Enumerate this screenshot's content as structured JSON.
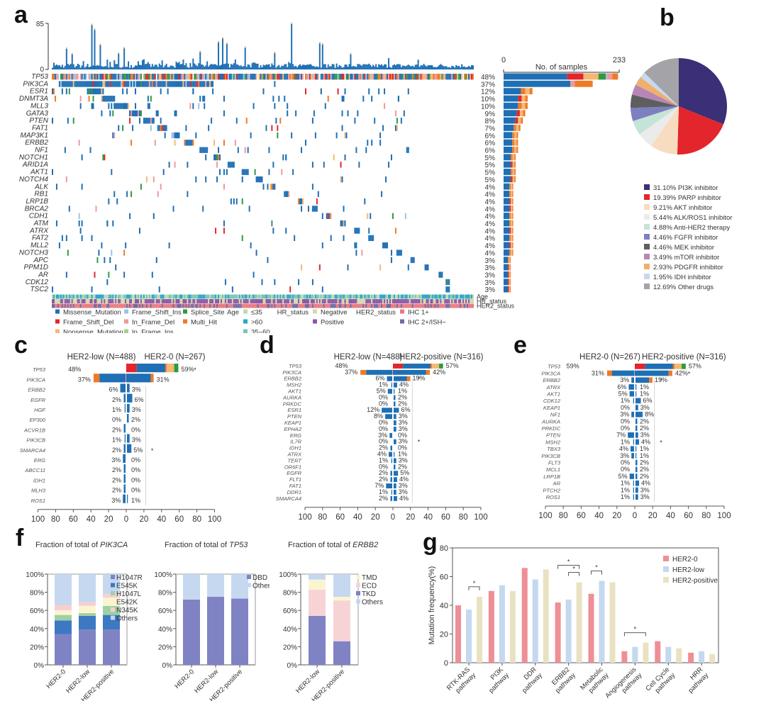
{
  "panel_letters": {
    "a": "a",
    "b": "b",
    "c": "c",
    "d": "d",
    "e": "e",
    "f": "f",
    "g": "g"
  },
  "colors": {
    "Missense_Mutation": "#1f6fb5",
    "Frame_Shift_Del": "#e2262b",
    "Nonsense_Mutation": "#f5b870",
    "Frame_Shift_Ins": "#9cc4e4",
    "In_Frame_Del": "#f0999a",
    "In_Frame_Ins": "#a6d08b",
    "Splice_Site": "#2e9a3f",
    "Multi_Hit": "#ef7a26",
    "age_le35": "#b9ddb4",
    "age_gt60": "#2aa6c9",
    "age_35_60": "#79c6b6",
    "hr_negative": "#d8d8a8",
    "hr_positive": "#8e56a4",
    "her2_ihc1": "#e87a80",
    "her2_ihc2": "#6d6aa8"
  },
  "chart_data": [
    {
      "id": "a",
      "type": "heatmap",
      "title": "Oncoprint",
      "tmb_axis": {
        "min": 0,
        "max": 85,
        "tick_labels": [
          "0",
          "85"
        ]
      },
      "sample_axis": {
        "label": "No. of samples",
        "min": 0,
        "max": 233,
        "tick_labels": [
          "0",
          "233"
        ]
      },
      "genes": [
        "TP53",
        "PIK3CA",
        "ESR1",
        "DNMT3A",
        "MLL3",
        "GATA3",
        "PTEN",
        "FAT1",
        "MAP3K1",
        "ERBB2",
        "NF1",
        "NOTCH1",
        "ARID1A",
        "AKT1",
        "NOTCH4",
        "ALK",
        "RB1",
        "LRP1B",
        "BRCA2",
        "CDH1",
        "ATM",
        "ATRX",
        "FAT2",
        "MLL2",
        "NOTCH3",
        "APC",
        "PPM1D",
        "AR",
        "CDK12",
        "TSC2"
      ],
      "frequencies": [
        "48%",
        "37%",
        "12%",
        "10%",
        "10%",
        "9%",
        "8%",
        "7%",
        "6%",
        "6%",
        "6%",
        "5%",
        "5%",
        "5%",
        "5%",
        "4%",
        "4%",
        "4%",
        "4%",
        "4%",
        "4%",
        "4%",
        "4%",
        "4%",
        "4%",
        "3%",
        "3%",
        "3%",
        "3%",
        "3%"
      ],
      "freq_values": [
        48,
        37,
        12,
        10,
        10,
        9,
        8,
        7,
        6,
        6,
        6,
        5,
        5,
        5,
        5,
        4,
        4,
        4,
        4,
        4,
        4,
        4,
        4,
        4,
        4,
        3,
        3,
        3,
        3,
        3
      ],
      "annotation_tracks": [
        "Age",
        "HR_status",
        "HER2_status"
      ],
      "legend_mutation": [
        "Missense_Mutation",
        "Frame_Shift_Ins",
        "Splice_Site",
        "Frame_Shift_Del",
        "In_Frame_Del",
        "Multi_Hit",
        "Nonsense_Mutation",
        "In_Frame_Ins"
      ],
      "legend_age": {
        "title": "Age",
        "items": [
          "≤35",
          ">60",
          "35~60"
        ]
      },
      "legend_hr": {
        "title": "HR_status",
        "items": [
          "Negative",
          "Positive"
        ]
      },
      "legend_her2": {
        "title": "HER2_status",
        "items": [
          "IHC 1+",
          "IHC 2+/ISH−"
        ]
      }
    },
    {
      "id": "b",
      "type": "pie",
      "title": "",
      "slices": [
        {
          "label": "31.10% PI3K inhibitor",
          "value": 31.1,
          "color": "#3b2f78"
        },
        {
          "label": "19.39% PARP inhibitor",
          "value": 19.39,
          "color": "#e2262b"
        },
        {
          "label": "9.21% AKT  inhibitor",
          "value": 9.21,
          "color": "#f8dcc0"
        },
        {
          "label": "5.44% ALK/ROS1 inhibitor",
          "value": 5.44,
          "color": "#ebebeb"
        },
        {
          "label": "4.88% Anti-HER2 therapy",
          "value": 4.88,
          "color": "#c4e4d8"
        },
        {
          "label": "4.46% FGFR inhibitor",
          "value": 4.46,
          "color": "#7d80c0"
        },
        {
          "label": "4.46% MEK inhibitor",
          "value": 4.46,
          "color": "#5e5e5e"
        },
        {
          "label": "3.49% mTOR inhibitor",
          "value": 3.49,
          "color": "#b886b6"
        },
        {
          "label": "2.93% PDGFR inhibitor",
          "value": 2.93,
          "color": "#f0b06c"
        },
        {
          "label": "1.95% IDH inhibitor",
          "value": 1.95,
          "color": "#c5d9f0"
        },
        {
          "label": "12.69% Other drugs",
          "value": 12.69,
          "color": "#a3a3a8"
        }
      ]
    },
    {
      "id": "c",
      "type": "bar",
      "title": "",
      "left_group": "HER2-low (N=488)",
      "right_group": "HER2-0 (N=267)",
      "genes": [
        "TP53",
        "PIK3CA",
        "ERBB2",
        "EGFR",
        "HGF",
        "EP300",
        "ACVR1B",
        "PIK3CB",
        "SMARCA4",
        "ERG",
        "ABCC11",
        "IDH1",
        "MLH3",
        "ROS1"
      ],
      "left_values": [
        48,
        37,
        6,
        2,
        1,
        0,
        2,
        1,
        2,
        3,
        2,
        2,
        2,
        3
      ],
      "right_values": [
        59,
        31,
        3,
        6,
        3,
        2,
        0,
        3,
        5,
        0,
        0,
        0,
        0,
        1
      ],
      "significant": [
        true,
        false,
        false,
        false,
        false,
        false,
        false,
        false,
        true,
        false,
        false,
        false,
        false,
        false
      ],
      "xticks": [
        "100",
        "80",
        "60",
        "40",
        "20",
        "0",
        "20",
        "40",
        "60",
        "80",
        "100"
      ],
      "xlim": [
        -100,
        100
      ]
    },
    {
      "id": "d",
      "type": "bar",
      "title": "",
      "left_group": "HER2-low (N=488)",
      "right_group": "HER2-positive (N=316)",
      "genes": [
        "TP53",
        "PIK3CA",
        "ERBB2",
        "MSH2",
        "AKT1",
        "AURKA",
        "PRKDC",
        "ESR1",
        "PTEN",
        "KEAP1",
        "EPHA2",
        "ERG",
        "IL7R",
        "IDH1",
        "ATRX",
        "TERT",
        "OR6F1",
        "EGFR",
        "FLT1",
        "FAT1",
        "DDR1",
        "SMARCA4"
      ],
      "left_values": [
        48,
        37,
        6,
        1,
        5,
        0,
        0,
        12,
        8,
        0,
        0,
        3,
        0,
        2,
        4,
        1,
        0,
        2,
        2,
        7,
        1,
        2
      ],
      "right_values": [
        57,
        42,
        19,
        4,
        1,
        2,
        2,
        6,
        3,
        3,
        3,
        0,
        3,
        0,
        1,
        3,
        2,
        5,
        4,
        3,
        3,
        4
      ],
      "significant": [
        false,
        false,
        true,
        false,
        false,
        false,
        false,
        false,
        false,
        false,
        false,
        false,
        true,
        false,
        false,
        false,
        false,
        false,
        false,
        false,
        false,
        false
      ],
      "xticks": [
        "100",
        "80",
        "60",
        "40",
        "20",
        "0",
        "20",
        "40",
        "60",
        "80",
        "100"
      ],
      "xlim": [
        -100,
        100
      ]
    },
    {
      "id": "e",
      "type": "bar",
      "title": "",
      "left_group": "HER2-0 (N=267)",
      "right_group": "HER2-positive (N=316)",
      "genes": [
        "TP53",
        "PIK3CA",
        "ERBB2",
        "ATRX",
        "AKT1",
        "CDK12",
        "KEAP1",
        "NF1",
        "AURKA",
        "PRKDC",
        "PTEN",
        "MSH2",
        "TBX3",
        "PIK3CB",
        "FLT3",
        "MCL1",
        "LRP1B",
        "AR",
        "PTCH2",
        "ROS1"
      ],
      "left_values": [
        59,
        31,
        3,
        6,
        5,
        1,
        0,
        3,
        0,
        0,
        7,
        1,
        4,
        3,
        0,
        0,
        5,
        1,
        1,
        1
      ],
      "right_values": [
        57,
        42,
        19,
        1,
        1,
        6,
        3,
        8,
        2,
        2,
        3,
        4,
        1,
        1,
        2,
        2,
        2,
        4,
        3,
        3
      ],
      "significant": [
        false,
        true,
        true,
        false,
        false,
        false,
        false,
        false,
        false,
        false,
        false,
        true,
        false,
        false,
        false,
        false,
        false,
        false,
        false,
        false
      ],
      "xticks": [
        "100",
        "80",
        "60",
        "40",
        "20",
        "0",
        "20",
        "40",
        "60",
        "80",
        "100"
      ],
      "xlim": [
        -100,
        100
      ]
    },
    {
      "id": "f1",
      "type": "bar",
      "title": "Fraction of total of ",
      "title_gene": "PIK3CA",
      "categories": [
        "HER2-0",
        "HER2-low",
        "HER2-positive"
      ],
      "series": [
        {
          "name": "H1047R",
          "values": [
            34,
            39,
            39
          ],
          "color": "#7f83c4"
        },
        {
          "name": "E545K",
          "values": [
            15,
            15,
            16
          ],
          "color": "#3d78c2"
        },
        {
          "name": "H1047L",
          "values": [
            6,
            3,
            10
          ],
          "color": "#9fd0a4"
        },
        {
          "name": "E542K",
          "values": [
            5,
            8,
            9
          ],
          "color": "#fbf5cf"
        },
        {
          "name": "N345K",
          "values": [
            6,
            4,
            4
          ],
          "color": "#f7cfd3"
        },
        {
          "name": "Others",
          "values": [
            34,
            31,
            22
          ],
          "color": "#c5d8ef"
        }
      ],
      "yticks": [
        "0%",
        "20%",
        "40%",
        "60%",
        "80%",
        "100%"
      ],
      "ylim": [
        0,
        100
      ]
    },
    {
      "id": "f2",
      "type": "bar",
      "title": "Fraction of total of ",
      "title_gene": "TP53",
      "categories": [
        "HER2-0",
        "HER2-low",
        "HER2-positive"
      ],
      "series": [
        {
          "name": "DBD",
          "values": [
            72,
            75,
            73
          ],
          "color": "#7f83c4"
        },
        {
          "name": "Others",
          "values": [
            28,
            25,
            27
          ],
          "color": "#c5d8ef"
        }
      ],
      "yticks": [
        "0%",
        "20%",
        "40%",
        "60%",
        "80%",
        "100%"
      ],
      "ylim": [
        0,
        100
      ]
    },
    {
      "id": "f3",
      "type": "bar",
      "title": "Fraction of total of ",
      "title_gene": "ERBB2",
      "categories": [
        "HER2-low",
        "HER2-positive"
      ],
      "series": [
        {
          "name": "TKD",
          "values": [
            54,
            26
          ],
          "color": "#7f83c4"
        },
        {
          "name": "ECD",
          "values": [
            29,
            45
          ],
          "color": "#f7d3d6"
        },
        {
          "name": "TMD",
          "values": [
            11,
            4
          ],
          "color": "#fbf5cf"
        },
        {
          "name": "Others",
          "values": [
            6,
            25
          ],
          "color": "#c5d8ef"
        }
      ],
      "legend_order": [
        "TMD",
        "ECD",
        "TKD",
        "Others"
      ],
      "yticks": [
        "0%",
        "20%",
        "40%",
        "60%",
        "80%",
        "100%"
      ],
      "ylim": [
        0,
        100
      ]
    },
    {
      "id": "g",
      "type": "bar",
      "title": "",
      "ylabel": "Mutation frequency(%)",
      "ylim": [
        0,
        80
      ],
      "yticks": [
        "0",
        "20",
        "40",
        "60",
        "80"
      ],
      "categories": [
        "RTK-RAS pathway",
        "PI3K pathway",
        "DDR pathway",
        "ERBB2 pathway",
        "Metabolic pathway",
        "Angiogenesis pathway",
        "Cell Cycle pathway",
        "HRR pathway"
      ],
      "category_lines": [
        [
          "RTK-RAS",
          "pathway"
        ],
        [
          "PI3K",
          "pathway"
        ],
        [
          "DDR",
          "pathway"
        ],
        [
          "ERBB2",
          "pathway"
        ],
        [
          "Metabolic",
          "pathway"
        ],
        [
          "Angiogenesis",
          "pathway"
        ],
        [
          "Cell Cycle",
          "pathway"
        ],
        [
          "HRR",
          "pathway"
        ]
      ],
      "series": [
        {
          "name": "HER2-0",
          "values": [
            40,
            50,
            66,
            42,
            48,
            8,
            15,
            7
          ],
          "color": "#ee8f95"
        },
        {
          "name": "HER2-low",
          "values": [
            37,
            54,
            58,
            44,
            57,
            11,
            11,
            8
          ],
          "color": "#c4d8f0"
        },
        {
          "name": "HER2-positive",
          "values": [
            46,
            50,
            65,
            56,
            56,
            14,
            10,
            6
          ],
          "color": "#e9e2c2"
        }
      ],
      "significance": [
        {
          "category": 0,
          "from": 1,
          "to": 2,
          "label": "*"
        },
        {
          "category": 3,
          "from": 0,
          "to": 2,
          "label": "*"
        },
        {
          "category": 3,
          "from": 1,
          "to": 2,
          "label": "*"
        },
        {
          "category": 4,
          "from": 0,
          "to": 1,
          "label": "*"
        },
        {
          "category": 5,
          "from": 0,
          "to": 2,
          "label": "*"
        }
      ],
      "legend_position": "top-right"
    }
  ]
}
